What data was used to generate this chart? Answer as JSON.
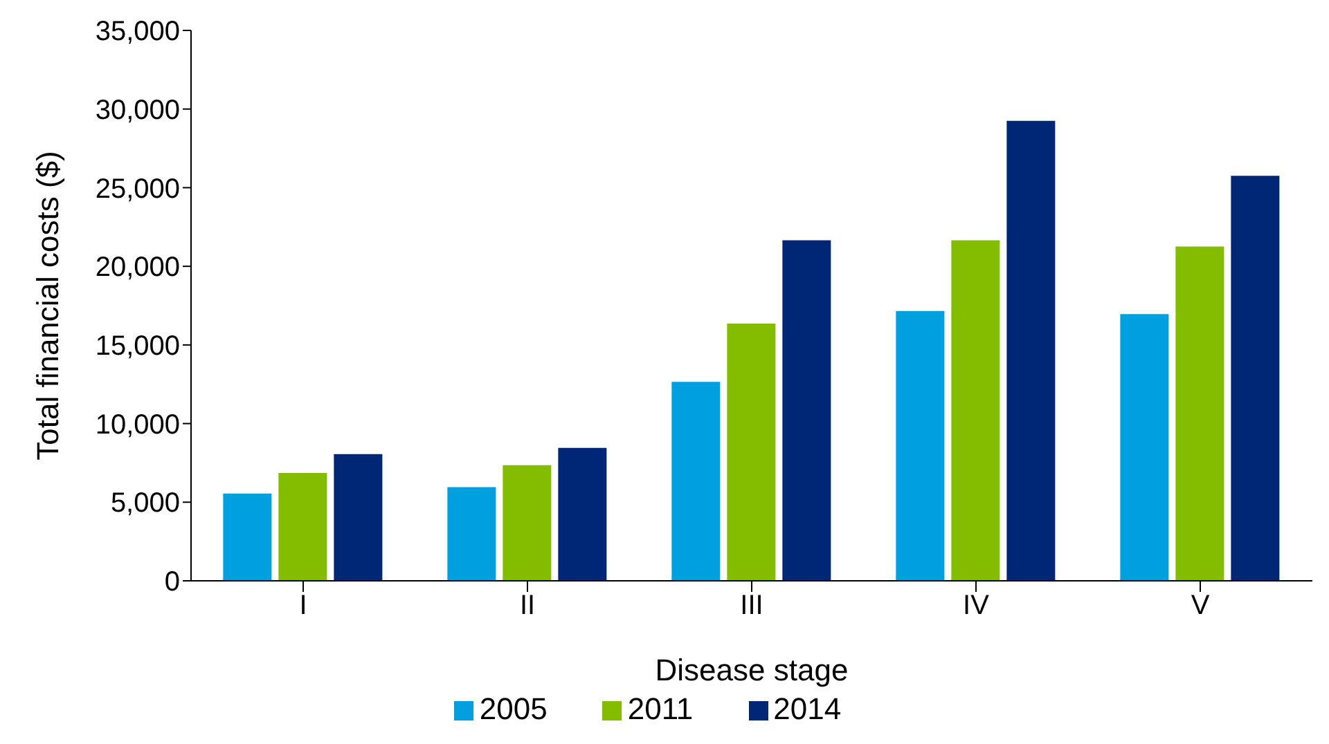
{
  "chart_data": {
    "type": "bar",
    "xlabel": "Disease stage",
    "ylabel": "Total financial costs ($)",
    "categories": [
      "I",
      "II",
      "III",
      "IV",
      "V"
    ],
    "series": [
      {
        "name": "2005",
        "color": "#00a0e0",
        "values": [
          5600,
          6000,
          12700,
          17200,
          17000
        ]
      },
      {
        "name": "2011",
        "color": "#84bd00",
        "values": [
          6900,
          7400,
          16400,
          21700,
          21300
        ]
      },
      {
        "name": "2014",
        "color": "#002776",
        "values": [
          8100,
          8500,
          21700,
          29300,
          25800
        ]
      }
    ],
    "ylim": [
      0,
      35000
    ],
    "yticks": [
      {
        "value": 0,
        "label": "0"
      },
      {
        "value": 5000,
        "label": "5,000"
      },
      {
        "value": 10000,
        "label": "10,000"
      },
      {
        "value": 15000,
        "label": "15,000"
      },
      {
        "value": 20000,
        "label": "20,000"
      },
      {
        "value": 25000,
        "label": "25,000"
      },
      {
        "value": 30000,
        "label": "30,000"
      },
      {
        "value": 35000,
        "label": "35,000"
      }
    ],
    "grid": false,
    "legend": "bottom"
  }
}
